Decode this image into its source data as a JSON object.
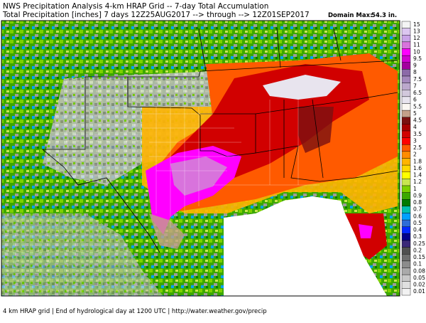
{
  "header": {
    "title": "NWS Precipitation Analysis 4-km HRAP Grid -- 7-day Total Accumulation",
    "subtitle": "Total Precipitation [inches] 7 days 12Z25AUG2017 --> through --> 12Z01SEP2017",
    "domain_max_label": "Domain Max:",
    "domain_max_value": "54.3 in."
  },
  "footer": "4 km HRAP grid | End of hydrological day at 1200 UTC | http://water.weather.gov/precip",
  "legend": {
    "items": [
      {
        "value": 15,
        "color": "#f4f4f4"
      },
      {
        "value": 13,
        "color": "#dcc6f0"
      },
      {
        "value": 12,
        "color": "#c9a3e8"
      },
      {
        "value": 11,
        "color": "#d873dc"
      },
      {
        "value": 10,
        "color": "#ff00ff"
      },
      {
        "value": 9.5,
        "color": "#d100d1"
      },
      {
        "value": 9,
        "color": "#a3009e"
      },
      {
        "value": 8,
        "color": "#8c6aa8"
      },
      {
        "value": 7.5,
        "color": "#a488bc"
      },
      {
        "value": 7,
        "color": "#bba8cc"
      },
      {
        "value": 6.5,
        "color": "#d2c8dc"
      },
      {
        "value": 6,
        "color": "#e8e4ee"
      },
      {
        "value": 5.5,
        "color": "#fbf7f2"
      },
      {
        "value": 5,
        "color": "#c4a08a"
      },
      {
        "value": 4.5,
        "color": "#7a1010"
      },
      {
        "value": 4,
        "color": "#a80000"
      },
      {
        "value": 3.5,
        "color": "#d10000"
      },
      {
        "value": 3,
        "color": "#ff0000"
      },
      {
        "value": 2.5,
        "color": "#ff5a00"
      },
      {
        "value": 2,
        "color": "#ff8c00"
      },
      {
        "value": 1.8,
        "color": "#ffb400"
      },
      {
        "value": 1.6,
        "color": "#ffd800"
      },
      {
        "value": 1.4,
        "color": "#ffff00"
      },
      {
        "value": 1.2,
        "color": "#c8e650"
      },
      {
        "value": 1,
        "color": "#7cd000"
      },
      {
        "value": 0.9,
        "color": "#3ca800"
      },
      {
        "value": 0.8,
        "color": "#007a00"
      },
      {
        "value": 0.7,
        "color": "#00c0b0"
      },
      {
        "value": 0.6,
        "color": "#00a0ff"
      },
      {
        "value": 0.5,
        "color": "#2c6cd8"
      },
      {
        "value": 0.4,
        "color": "#0028ff"
      },
      {
        "value": 0.3,
        "color": "#00008c"
      },
      {
        "value": 0.25,
        "color": "#3a2878"
      },
      {
        "value": 0.2,
        "color": "#505050"
      },
      {
        "value": 0.15,
        "color": "#6e6e6e"
      },
      {
        "value": 0.1,
        "color": "#8c8c8c"
      },
      {
        "value": 0.08,
        "color": "#aaaaaa"
      },
      {
        "value": 0.05,
        "color": "#c8c8c8"
      },
      {
        "value": 0.02,
        "color": "#e0e0e0"
      },
      {
        "value": 0.01,
        "color": "#f2f2f2"
      }
    ]
  }
}
